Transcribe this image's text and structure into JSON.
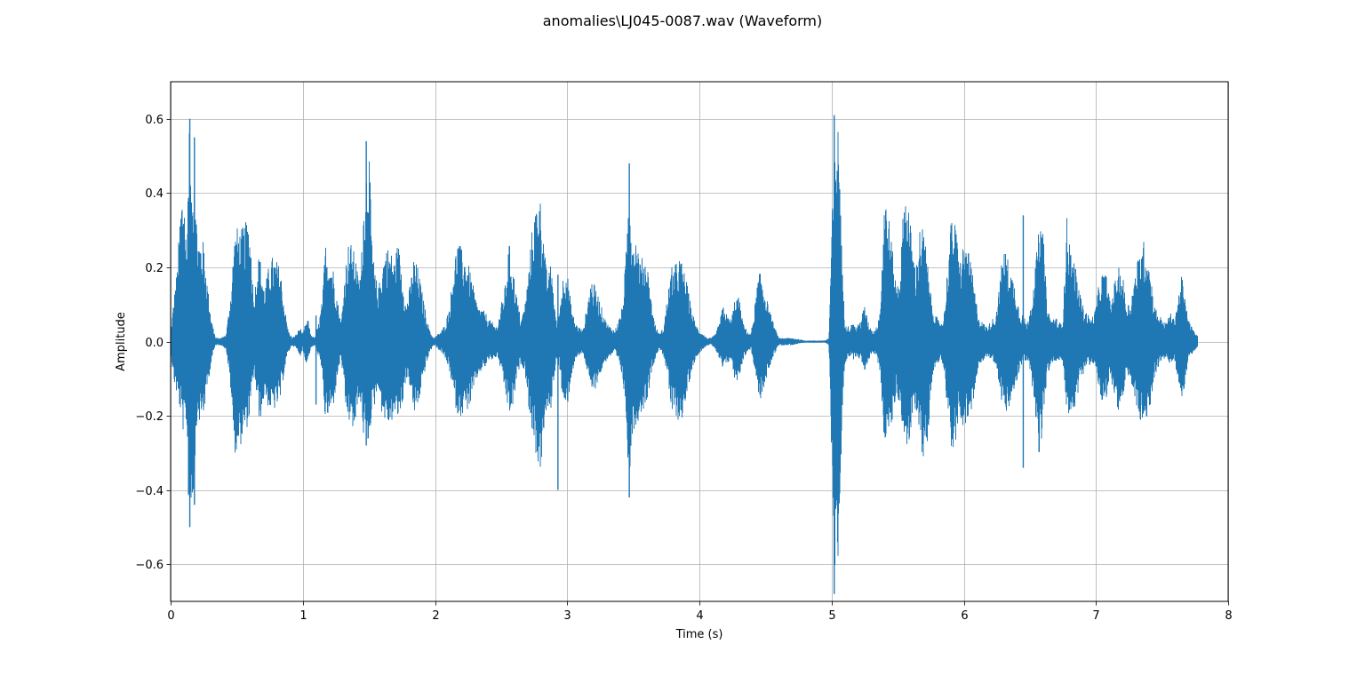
{
  "chart_data": {
    "type": "line",
    "title": "anomalies\\LJ045-0087.wav (Waveform)",
    "xlabel": "Time (s)",
    "ylabel": "Amplitude",
    "xlim": [
      0,
      8
    ],
    "ylim": [
      -0.7,
      0.7
    ],
    "xticks": [
      0,
      1,
      2,
      3,
      4,
      5,
      6,
      7,
      8
    ],
    "xtick_labels": [
      "0",
      "1",
      "2",
      "3",
      "4",
      "5",
      "6",
      "7",
      "8"
    ],
    "yticks": [
      -0.6,
      -0.4,
      -0.2,
      0.0,
      0.2,
      0.4,
      0.6
    ],
    "ytick_labels": [
      "−0.6",
      "−0.4",
      "−0.2",
      "0.0",
      "0.2",
      "0.4",
      "0.6"
    ],
    "grid": true,
    "duration": 7.77,
    "series": [
      {
        "color": "#1f77b4",
        "envelope": {
          "t": [
            0,
            0.02,
            0.05,
            0.08,
            0.1,
            0.12,
            0.14,
            0.16,
            0.18,
            0.2,
            0.22,
            0.25,
            0.28,
            0.31,
            0.34,
            0.38,
            0.42,
            0.46,
            0.48,
            0.5,
            0.53,
            0.56,
            0.59,
            0.61,
            0.63,
            0.65,
            0.67,
            0.69,
            0.71,
            0.74,
            0.77,
            0.8,
            0.83,
            0.86,
            0.89,
            0.92,
            0.95,
            0.98,
            1.0,
            1.02,
            1.04,
            1.06,
            1.09,
            1.12,
            1.15,
            1.17,
            1.2,
            1.23,
            1.26,
            1.29,
            1.32,
            1.35,
            1.38,
            1.4,
            1.42,
            1.44,
            1.46,
            1.48,
            1.5,
            1.52,
            1.54,
            1.57,
            1.6,
            1.63,
            1.66,
            1.69,
            1.72,
            1.75,
            1.78,
            1.81,
            1.84,
            1.87,
            1.9,
            1.93,
            1.96,
            1.99,
            2.02,
            2.05,
            2.08,
            2.11,
            2.14,
            2.17,
            2.2,
            2.23,
            2.26,
            2.29,
            2.32,
            2.35,
            2.38,
            2.41,
            2.44,
            2.47,
            2.5,
            2.53,
            2.56,
            2.59,
            2.62,
            2.65,
            2.68,
            2.71,
            2.74,
            2.76,
            2.78,
            2.8,
            2.82,
            2.84,
            2.86,
            2.88,
            2.9,
            2.92,
            2.94,
            2.96,
            2.98,
            3.0,
            3.03,
            3.06,
            3.09,
            3.12,
            3.15,
            3.18,
            3.21,
            3.24,
            3.27,
            3.3,
            3.33,
            3.36,
            3.39,
            3.42,
            3.45,
            3.47,
            3.49,
            3.51,
            3.53,
            3.55,
            3.58,
            3.61,
            3.64,
            3.67,
            3.7,
            3.73,
            3.76,
            3.79,
            3.82,
            3.85,
            3.88,
            3.91,
            3.94,
            3.97,
            4.0,
            4.03,
            4.06,
            4.09,
            4.12,
            4.15,
            4.18,
            4.21,
            4.24,
            4.27,
            4.3,
            4.33,
            4.36,
            4.39,
            4.42,
            4.45,
            4.48,
            4.52,
            4.56,
            4.6,
            4.7,
            4.8,
            4.9,
            4.95,
            4.98,
            5.0,
            5.02,
            5.04,
            5.06,
            5.08,
            5.1,
            5.13,
            5.16,
            5.19,
            5.22,
            5.25,
            5.28,
            5.31,
            5.34,
            5.37,
            5.4,
            5.43,
            5.46,
            5.49,
            5.52,
            5.55,
            5.58,
            5.61,
            5.64,
            5.67,
            5.7,
            5.73,
            5.76,
            5.79,
            5.82,
            5.85,
            5.88,
            5.91,
            5.94,
            5.97,
            6.0,
            6.03,
            6.06,
            6.09,
            6.12,
            6.15,
            6.18,
            6.21,
            6.24,
            6.27,
            6.3,
            6.33,
            6.36,
            6.39,
            6.42,
            6.45,
            6.48,
            6.51,
            6.54,
            6.57,
            6.6,
            6.63,
            6.66,
            6.69,
            6.72,
            6.75,
            6.78,
            6.81,
            6.84,
            6.87,
            6.9,
            6.93,
            6.96,
            6.99,
            7.02,
            7.05,
            7.08,
            7.11,
            7.14,
            7.17,
            7.2,
            7.23,
            7.26,
            7.29,
            7.32,
            7.35,
            7.38,
            7.41,
            7.44,
            7.47,
            7.5,
            7.53,
            7.56,
            7.59,
            7.62,
            7.65,
            7.68,
            7.71,
            7.74,
            7.77
          ],
          "max": [
            0.02,
            0.1,
            0.2,
            0.4,
            0.43,
            0.25,
            0.6,
            0.35,
            0.55,
            0.3,
            0.28,
            0.27,
            0.15,
            0.06,
            0.01,
            0.01,
            0.02,
            0.15,
            0.28,
            0.31,
            0.3,
            0.32,
            0.33,
            0.26,
            0.1,
            0.2,
            0.24,
            0.2,
            0.14,
            0.2,
            0.23,
            0.22,
            0.2,
            0.1,
            0.03,
            0.01,
            0.02,
            0.04,
            0.02,
            0.05,
            0.06,
            0.02,
            0.01,
            0.05,
            0.12,
            0.27,
            0.23,
            0.2,
            0.12,
            0.05,
            0.2,
            0.28,
            0.25,
            0.23,
            0.17,
            0.2,
            0.38,
            0.5,
            0.54,
            0.3,
            0.2,
            0.14,
            0.21,
            0.26,
            0.25,
            0.22,
            0.27,
            0.2,
            0.1,
            0.15,
            0.23,
            0.2,
            0.14,
            0.08,
            0.03,
            0.01,
            0.02,
            0.03,
            0.05,
            0.1,
            0.2,
            0.28,
            0.25,
            0.23,
            0.2,
            0.15,
            0.1,
            0.09,
            0.08,
            0.06,
            0.05,
            0.04,
            0.1,
            0.15,
            0.27,
            0.2,
            0.12,
            0.06,
            0.1,
            0.2,
            0.33,
            0.36,
            0.42,
            0.38,
            0.3,
            0.2,
            0.18,
            0.22,
            0.12,
            0.05,
            0.08,
            0.16,
            0.2,
            0.19,
            0.1,
            0.05,
            0.04,
            0.03,
            0.1,
            0.17,
            0.15,
            0.12,
            0.08,
            0.05,
            0.04,
            0.03,
            0.06,
            0.1,
            0.27,
            0.48,
            0.3,
            0.28,
            0.29,
            0.21,
            0.24,
            0.2,
            0.1,
            0.04,
            0.02,
            0.04,
            0.13,
            0.2,
            0.21,
            0.23,
            0.2,
            0.15,
            0.09,
            0.05,
            0.03,
            0.02,
            0.01,
            0.01,
            0.02,
            0.05,
            0.1,
            0.07,
            0.06,
            0.12,
            0.12,
            0.05,
            0.03,
            0.02,
            0.1,
            0.19,
            0.17,
            0.1,
            0.05,
            0.01,
            0.01,
            0.003,
            0.003,
            0.003,
            0.01,
            0.3,
            0.52,
            0.61,
            0.55,
            0.2,
            0.06,
            0.04,
            0.05,
            0.04,
            0.06,
            0.1,
            0.05,
            0.03,
            0.04,
            0.1,
            0.42,
            0.35,
            0.25,
            0.15,
            0.2,
            0.41,
            0.39,
            0.26,
            0.2,
            0.32,
            0.3,
            0.2,
            0.1,
            0.07,
            0.05,
            0.07,
            0.22,
            0.35,
            0.31,
            0.22,
            0.27,
            0.25,
            0.2,
            0.12,
            0.06,
            0.05,
            0.04,
            0.06,
            0.07,
            0.15,
            0.26,
            0.23,
            0.19,
            0.15,
            0.09,
            0.07,
            0.05,
            0.11,
            0.2,
            0.31,
            0.3,
            0.1,
            0.06,
            0.07,
            0.05,
            0.06,
            0.34,
            0.25,
            0.21,
            0.15,
            0.1,
            0.08,
            0.06,
            0.08,
            0.15,
            0.19,
            0.18,
            0.1,
            0.16,
            0.2,
            0.19,
            0.1,
            0.11,
            0.17,
            0.23,
            0.28,
            0.26,
            0.2,
            0.1,
            0.08,
            0.06,
            0.05,
            0.08,
            0.06,
            0.12,
            0.18,
            0.1,
            0.05,
            0.03,
            0.015,
            0.003,
            0.001
          ],
          "min": [
            -0.02,
            -0.1,
            -0.15,
            -0.2,
            -0.26,
            -0.22,
            -0.5,
            -0.45,
            -0.38,
            -0.2,
            -0.22,
            -0.2,
            -0.12,
            -0.05,
            -0.01,
            -0.01,
            -0.02,
            -0.15,
            -0.3,
            -0.3,
            -0.28,
            -0.25,
            -0.22,
            -0.17,
            -0.08,
            -0.15,
            -0.21,
            -0.2,
            -0.14,
            -0.18,
            -0.19,
            -0.18,
            -0.16,
            -0.08,
            -0.03,
            -0.01,
            -0.02,
            -0.04,
            -0.02,
            -0.06,
            -0.05,
            -0.02,
            -0.01,
            -0.04,
            -0.1,
            -0.22,
            -0.2,
            -0.18,
            -0.1,
            -0.04,
            -0.18,
            -0.22,
            -0.24,
            -0.24,
            -0.15,
            -0.18,
            -0.26,
            -0.27,
            -0.28,
            -0.2,
            -0.18,
            -0.12,
            -0.2,
            -0.22,
            -0.23,
            -0.2,
            -0.21,
            -0.18,
            -0.1,
            -0.12,
            -0.2,
            -0.18,
            -0.12,
            -0.07,
            -0.03,
            -0.01,
            -0.02,
            -0.03,
            -0.05,
            -0.08,
            -0.15,
            -0.2,
            -0.2,
            -0.19,
            -0.18,
            -0.14,
            -0.1,
            -0.08,
            -0.07,
            -0.05,
            -0.05,
            -0.04,
            -0.08,
            -0.14,
            -0.2,
            -0.18,
            -0.1,
            -0.06,
            -0.08,
            -0.18,
            -0.26,
            -0.3,
            -0.33,
            -0.37,
            -0.25,
            -0.2,
            -0.2,
            -0.18,
            -0.1,
            -0.05,
            -0.07,
            -0.14,
            -0.2,
            -0.18,
            -0.1,
            -0.05,
            -0.04,
            -0.03,
            -0.08,
            -0.14,
            -0.13,
            -0.1,
            -0.07,
            -0.05,
            -0.04,
            -0.03,
            -0.06,
            -0.1,
            -0.23,
            -0.42,
            -0.25,
            -0.24,
            -0.22,
            -0.2,
            -0.18,
            -0.15,
            -0.08,
            -0.04,
            -0.02,
            -0.04,
            -0.1,
            -0.2,
            -0.2,
            -0.22,
            -0.2,
            -0.14,
            -0.08,
            -0.05,
            -0.03,
            -0.02,
            -0.01,
            -0.01,
            -0.02,
            -0.05,
            -0.08,
            -0.06,
            -0.05,
            -0.11,
            -0.1,
            -0.05,
            -0.03,
            -0.02,
            -0.08,
            -0.16,
            -0.15,
            -0.08,
            -0.04,
            -0.01,
            -0.01,
            -0.003,
            -0.003,
            -0.003,
            -0.01,
            -0.3,
            -0.6,
            -0.68,
            -0.5,
            -0.2,
            -0.06,
            -0.04,
            -0.05,
            -0.04,
            -0.05,
            -0.08,
            -0.05,
            -0.03,
            -0.04,
            -0.09,
            -0.28,
            -0.25,
            -0.22,
            -0.14,
            -0.18,
            -0.26,
            -0.3,
            -0.22,
            -0.18,
            -0.25,
            -0.36,
            -0.25,
            -0.1,
            -0.07,
            -0.05,
            -0.07,
            -0.2,
            -0.3,
            -0.28,
            -0.21,
            -0.23,
            -0.22,
            -0.2,
            -0.12,
            -0.06,
            -0.05,
            -0.04,
            -0.05,
            -0.06,
            -0.12,
            -0.2,
            -0.2,
            -0.16,
            -0.13,
            -0.08,
            -0.06,
            -0.05,
            -0.1,
            -0.18,
            -0.34,
            -0.22,
            -0.1,
            -0.06,
            -0.06,
            -0.05,
            -0.06,
            -0.2,
            -0.19,
            -0.18,
            -0.13,
            -0.09,
            -0.07,
            -0.06,
            -0.07,
            -0.12,
            -0.18,
            -0.17,
            -0.1,
            -0.14,
            -0.2,
            -0.18,
            -0.1,
            -0.1,
            -0.15,
            -0.2,
            -0.24,
            -0.22,
            -0.18,
            -0.1,
            -0.07,
            -0.05,
            -0.05,
            -0.06,
            -0.05,
            -0.1,
            -0.18,
            -0.09,
            -0.04,
            -0.03,
            -0.015,
            -0.003,
            -0.001
          ]
        },
        "spikes": [
          {
            "t": 0.145,
            "max": 0.6,
            "min": -0.5
          },
          {
            "t": 0.18,
            "max": 0.55,
            "min": -0.44
          },
          {
            "t": 1.1,
            "max": 0.07,
            "min": -0.17
          },
          {
            "t": 1.48,
            "max": 0.54,
            "min": -0.28
          },
          {
            "t": 2.93,
            "max": 0.18,
            "min": -0.4
          },
          {
            "t": 3.47,
            "max": 0.48,
            "min": -0.42
          },
          {
            "t": 5.02,
            "max": 0.61,
            "min": -0.68
          },
          {
            "t": 6.45,
            "max": 0.34,
            "min": -0.34
          }
        ]
      }
    ]
  }
}
